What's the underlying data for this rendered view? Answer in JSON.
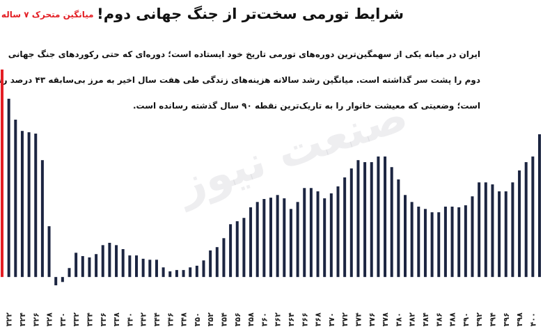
{
  "title": "شرایط تورمی سخت‌تر از جنگ جهانی دوم!",
  "paragraph": [
    "ایران در میانه یکی از سهمگین‌ترین دوره‌های تورمی تاریخ خود ایستاده است؛ دوره‌ای که حتی رکوردهای جنگ جهانی",
    "دوم را پشت سر گذاشته است. میانگین رشد سالانه هزینه‌های زندگی طی هفت سال اخیر به مرز بی‌سابقه ۴۳ درصد رسیده",
    "است؛ وضعیتی که معیشت خانوار را به تاریک‌ترین نقطه ۹۰ سال گذشته رسانده است."
  ],
  "watermark": "صنعت نیوز",
  "chart_data": {
    "type": "bar",
    "series_label": "میانگین متحرک ۷ ساله تورم",
    "categories": [
      null,
      "۱۳۲۲",
      null,
      "۱۳۲۴",
      null,
      "۱۳۲۶",
      null,
      "۱۳۲۸",
      null,
      "۱۳۳۰",
      null,
      "۱۳۳۲",
      null,
      "۱۳۳۴",
      null,
      "۱۳۳۶",
      null,
      "۱۳۳۸",
      null,
      "۱۳۴۰",
      null,
      "۱۳۴۲",
      null,
      "۱۳۴۴",
      null,
      "۱۳۴۶",
      null,
      "۱۳۴۸",
      null,
      "۱۳۵۰",
      null,
      "۱۳۵۲",
      null,
      "۱۳۵۴",
      null,
      "۱۳۵۶",
      null,
      "۱۳۵۸",
      null,
      "۱۳۶۰",
      null,
      "۱۳۶۲",
      null,
      "۱۳۶۴",
      null,
      "۱۳۶۶",
      null,
      "۱۳۶۸",
      null,
      "۱۳۷۰",
      null,
      "۱۳۷۲",
      null,
      "۱۳۷۴",
      null,
      "۱۳۷۶",
      null,
      "۱۳۷۸",
      null,
      "۱۳۸۰",
      null,
      "۱۳۸۲",
      null,
      "۱۳۸۴",
      null,
      "۱۳۸۶",
      null,
      "۱۳۸۸",
      null,
      "۱۳۹۰",
      null,
      "۱۳۹۲",
      null,
      "۱۳۹۴",
      null,
      "۱۳۹۶",
      null,
      "۱۳۹۸",
      null,
      "۱۴۰۰",
      null
    ],
    "values": [
      62.5,
      53.7,
      47.4,
      44,
      43.6,
      43.2,
      35.2,
      15.3,
      -2.5,
      -1.5,
      2.7,
      7.3,
      6.3,
      5.9,
      6.9,
      9.6,
      10.3,
      9.6,
      8.4,
      6.5,
      6.5,
      5.5,
      5.2,
      5.2,
      2.9,
      1.7,
      2.1,
      2.1,
      2.9,
      3.4,
      5,
      8,
      9,
      11.7,
      15.9,
      16.8,
      17.8,
      21,
      22.6,
      23.5,
      23.9,
      24.7,
      23.7,
      20.5,
      22.6,
      26.8,
      26.8,
      25.8,
      23.7,
      25.2,
      27.3,
      30,
      32.7,
      35.2,
      34.6,
      34.6,
      36.3,
      36.3,
      33.1,
      29.4,
      24.7,
      22.6,
      21.2,
      20.5,
      19.5,
      19.5,
      21.2,
      21.2,
      21,
      21.6,
      24.3,
      28.5,
      28.5,
      27.9,
      25.8,
      25.8,
      28.5,
      32.1,
      34.6,
      36.3,
      43
    ],
    "color": "#1c2541",
    "highlight": {
      "index": 0,
      "color": "#e31e24"
    },
    "ylim": [
      -5,
      65
    ]
  }
}
